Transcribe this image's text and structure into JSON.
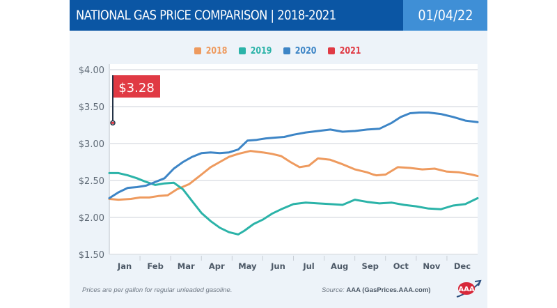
{
  "header": {
    "title": "NATIONAL GAS PRICE COMPARISON | 2018-2021",
    "date": "01/04/22"
  },
  "footer": {
    "note": "Prices are per gallon for regular unleaded gasoline.",
    "source_prefix": "Source:",
    "source_name": "AAA (GasPrices.AAA.com)",
    "logo": "aaa-logo-icon"
  },
  "colors": {
    "header_bg": "#0b56a4",
    "date_bg": "#3f8fd6",
    "2018": "#ee9a5e",
    "2019": "#2bb3a8",
    "2020": "#3d85c6",
    "2021": "#e03a44"
  },
  "chart_data": {
    "type": "line",
    "title": "NATIONAL GAS PRICE COMPARISON | 2018-2021",
    "xlabel": "",
    "ylabel": "",
    "categories": [
      "Jan",
      "Feb",
      "Mar",
      "Apr",
      "May",
      "Jun",
      "Jul",
      "Aug",
      "Sep",
      "Oct",
      "Nov",
      "Dec"
    ],
    "y_ticks": [
      "$1.50",
      "$2.00",
      "$2.50",
      "$3.00",
      "$3.50",
      "$4.00"
    ],
    "ylim": [
      1.5,
      4.0
    ],
    "grid": true,
    "legend_position": "top-center",
    "x_semantic": "month index (0 = start of Jan, 12 = end of Dec)",
    "series": [
      {
        "name": "2018",
        "x": [
          0,
          0.3,
          0.7,
          1.0,
          1.3,
          1.6,
          1.9,
          2.2,
          2.6,
          3.0,
          3.3,
          3.6,
          3.9,
          4.2,
          4.6,
          5.0,
          5.3,
          5.6,
          5.9,
          6.2,
          6.5,
          6.8,
          7.2,
          7.6,
          8.0,
          8.4,
          8.6,
          8.7,
          9.0,
          9.4,
          9.8,
          10.2,
          10.6,
          11.0,
          11.4,
          11.8,
          12.0
        ],
        "values": [
          2.25,
          2.24,
          2.25,
          2.27,
          2.27,
          2.29,
          2.3,
          2.38,
          2.45,
          2.58,
          2.68,
          2.75,
          2.82,
          2.86,
          2.9,
          2.88,
          2.86,
          2.83,
          2.75,
          2.68,
          2.7,
          2.8,
          2.78,
          2.72,
          2.65,
          2.61,
          2.58,
          2.57,
          2.58,
          2.68,
          2.67,
          2.65,
          2.66,
          2.62,
          2.61,
          2.58,
          2.56
        ]
      },
      {
        "name": "2019",
        "x": [
          0,
          0.3,
          0.6,
          0.9,
          1.2,
          1.5,
          1.8,
          2.1,
          2.4,
          2.7,
          3.0,
          3.3,
          3.6,
          3.9,
          4.2,
          4.4,
          4.7,
          5.0,
          5.3,
          5.6,
          6.0,
          6.4,
          6.8,
          7.2,
          7.6,
          8.0,
          8.4,
          8.8,
          9.2,
          9.6,
          10.0,
          10.4,
          10.8,
          11.2,
          11.6,
          12.0
        ],
        "values": [
          2.6,
          2.6,
          2.57,
          2.53,
          2.48,
          2.44,
          2.46,
          2.47,
          2.38,
          2.22,
          2.06,
          1.95,
          1.86,
          1.8,
          1.77,
          1.82,
          1.91,
          1.97,
          2.05,
          2.11,
          2.18,
          2.2,
          2.19,
          2.18,
          2.17,
          2.24,
          2.21,
          2.19,
          2.2,
          2.17,
          2.15,
          2.12,
          2.11,
          2.16,
          2.18,
          2.26
        ]
      },
      {
        "name": "2020",
        "x": [
          0,
          0.3,
          0.6,
          0.9,
          1.2,
          1.5,
          1.8,
          2.1,
          2.4,
          2.7,
          3.0,
          3.3,
          3.6,
          3.9,
          4.2,
          4.5,
          4.8,
          5.1,
          5.4,
          5.7,
          6.0,
          6.4,
          6.8,
          7.2,
          7.6,
          8.0,
          8.4,
          8.8,
          9.2,
          9.5,
          9.8,
          10.1,
          10.4,
          10.8,
          11.2,
          11.6,
          12.0
        ],
        "values": [
          2.26,
          2.34,
          2.4,
          2.41,
          2.43,
          2.48,
          2.53,
          2.66,
          2.75,
          2.82,
          2.87,
          2.88,
          2.87,
          2.88,
          2.92,
          3.04,
          3.05,
          3.07,
          3.08,
          3.09,
          3.12,
          3.15,
          3.17,
          3.19,
          3.16,
          3.17,
          3.19,
          3.2,
          3.28,
          3.36,
          3.41,
          3.42,
          3.42,
          3.4,
          3.36,
          3.31,
          3.29
        ]
      },
      {
        "name": "2021",
        "x": [
          0
        ],
        "values": [
          3.28
        ],
        "annotation": "$3.28"
      }
    ]
  }
}
